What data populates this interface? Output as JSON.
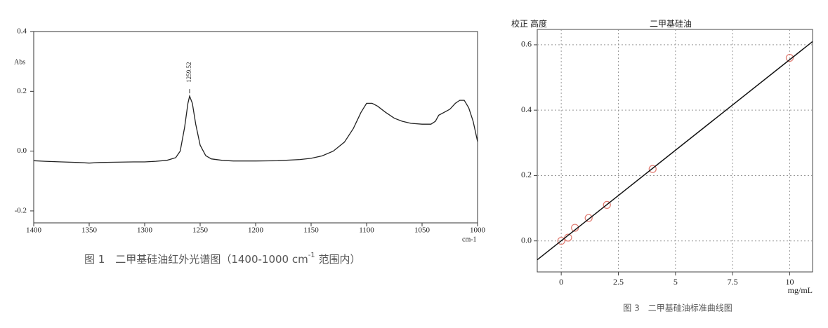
{
  "chart_data": [
    {
      "type": "line",
      "y_label": "Abs",
      "x_label": "cm-1",
      "caption": "图 1　二甲基硅油红外光谱图（1400-1000 cm",
      "caption_sup": "-1",
      "caption_end": " 范围内）",
      "peak_label": 1259.52,
      "x": [
        1400,
        1390,
        1375,
        1360,
        1350,
        1340,
        1325,
        1310,
        1300,
        1290,
        1280,
        1272,
        1268,
        1264,
        1261,
        1259.52,
        1257,
        1254,
        1250,
        1245,
        1240,
        1230,
        1220,
        1200,
        1180,
        1160,
        1150,
        1140,
        1130,
        1120,
        1112,
        1105,
        1100,
        1095,
        1090,
        1083,
        1075,
        1068,
        1060,
        1050,
        1042,
        1038,
        1035,
        1030,
        1025,
        1020,
        1016,
        1012,
        1008,
        1004,
        1000
      ],
      "values": [
        -0.032,
        -0.034,
        -0.036,
        -0.038,
        -0.04,
        -0.038,
        -0.037,
        -0.036,
        -0.036,
        -0.034,
        -0.031,
        -0.022,
        0.0,
        0.08,
        0.16,
        0.184,
        0.16,
        0.09,
        0.02,
        -0.015,
        -0.026,
        -0.031,
        -0.033,
        -0.033,
        -0.032,
        -0.028,
        -0.024,
        -0.016,
        0.0,
        0.03,
        0.075,
        0.13,
        0.16,
        0.16,
        0.15,
        0.13,
        0.11,
        0.1,
        0.093,
        0.09,
        0.09,
        0.1,
        0.12,
        0.13,
        0.14,
        0.16,
        0.17,
        0.17,
        0.145,
        0.1,
        0.032
      ],
      "color": "#222222",
      "xlim": [
        1400,
        1000
      ],
      "ylim": [
        -0.24,
        0.4
      ],
      "xticks": [
        1400,
        1350,
        1300,
        1250,
        1200,
        1150,
        1100,
        1050,
        1000
      ],
      "yticks": [
        0.4,
        0.2,
        {
          "value": 0,
          "label": "0.0"
        },
        -0.2
      ],
      "grid": false
    },
    {
      "type": "scatter",
      "corner_label": "校正 高度",
      "title": "二甲基硅油",
      "x_label": "mg/mL",
      "caption": "图 3　二甲基硅油标准曲线图",
      "series": [
        {
          "mode": "markers",
          "color": "#e07a70",
          "x": [
            0,
            0.3,
            0.6,
            1.2,
            2,
            4,
            10
          ],
          "values": [
            0,
            0.01,
            0.04,
            0.07,
            0.11,
            0.22,
            0.56
          ]
        },
        {
          "mode": "line",
          "color": "#111111",
          "x": [
            -1.05,
            11
          ],
          "values": [
            -0.058,
            0.61
          ]
        }
      ],
      "xlim": [
        -1.05,
        11
      ],
      "ylim": [
        -0.095,
        0.647
      ],
      "xticks": [
        0,
        2.5,
        5,
        7.5,
        10
      ],
      "yticks": [
        {
          "value": 0,
          "label": "0.0"
        },
        0.2,
        0.4,
        0.6
      ],
      "grid": true
    }
  ]
}
